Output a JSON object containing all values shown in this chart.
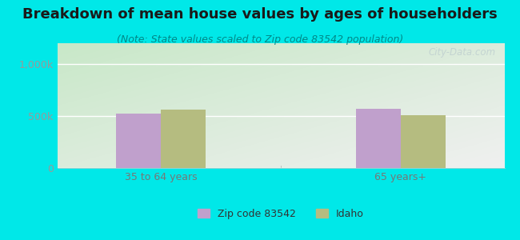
{
  "title": "Breakdown of mean house values by ages of householders",
  "subtitle": "(Note: State values scaled to Zip code 83542 population)",
  "categories": [
    "35 to 64 years",
    "65 years+"
  ],
  "zip_values": [
    520000,
    570000
  ],
  "state_values": [
    565000,
    510000
  ],
  "zip_color": "#c0a0cc",
  "state_color": "#b5bc80",
  "background_outer": "#00e8e8",
  "background_inner_topleft": "#c8e8c8",
  "background_inner_bottomright": "#f0f0f0",
  "ylim": [
    0,
    1200000
  ],
  "ytick_labels": [
    "0",
    "500k",
    "1,000k"
  ],
  "ytick_values": [
    0,
    500000,
    1000000
  ],
  "legend_labels": [
    "Zip code 83542",
    "Idaho"
  ],
  "bar_width": 0.28,
  "positions": [
    1.0,
    2.5
  ],
  "xlim": [
    0.35,
    3.15
  ],
  "watermark": "City-Data.com",
  "title_fontsize": 13,
  "subtitle_fontsize": 9,
  "tick_fontsize": 9,
  "legend_fontsize": 9,
  "title_color": "#1a1a1a",
  "subtitle_color": "#008888",
  "tick_color": "#999999",
  "xlabel_color": "#777777"
}
